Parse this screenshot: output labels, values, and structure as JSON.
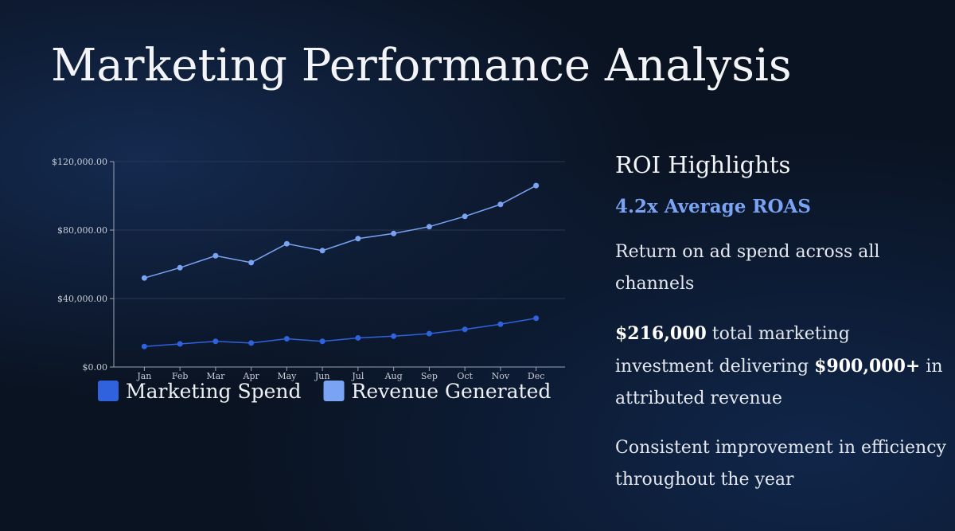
{
  "title": "Marketing Performance Analysis",
  "chart_data": {
    "type": "line",
    "categories": [
      "Jan",
      "Feb",
      "Mar",
      "Apr",
      "May",
      "Jun",
      "Jul",
      "Aug",
      "Sep",
      "Oct",
      "Nov",
      "Dec"
    ],
    "series": [
      {
        "name": "Marketing Spend",
        "color": "#2f62dc",
        "values": [
          12000,
          13500,
          15000,
          14000,
          16500,
          15000,
          17000,
          18000,
          19500,
          22000,
          25000,
          28500
        ]
      },
      {
        "name": "Revenue Generated",
        "color": "#7aa3f4",
        "values": [
          52000,
          58000,
          65000,
          61000,
          72000,
          68000,
          75000,
          78000,
          82000,
          88000,
          95000,
          106000
        ]
      }
    ],
    "ylim": [
      0,
      120000
    ],
    "yticks": [
      {
        "value": 0,
        "label": "$0.00"
      },
      {
        "value": 40000,
        "label": "$40,000.00"
      },
      {
        "value": 80000,
        "label": "$80,000.00"
      },
      {
        "value": 120000,
        "label": "$120,000.00"
      }
    ],
    "grid": true,
    "legend": "bottom"
  },
  "highlights": {
    "heading": "ROI Highlights",
    "metric": "4.2x Average ROAS",
    "points": [
      [
        {
          "text": "Return on ad spend across all channels",
          "strong": false
        }
      ],
      [
        {
          "text": "$216,000",
          "strong": true
        },
        {
          "text": " total marketing investment delivering ",
          "strong": false
        },
        {
          "text": "$900,000+",
          "strong": true
        },
        {
          "text": " in attributed revenue",
          "strong": false
        }
      ],
      [
        {
          "text": "Consistent improvement in efficiency throughout the year",
          "strong": false
        }
      ]
    ]
  }
}
